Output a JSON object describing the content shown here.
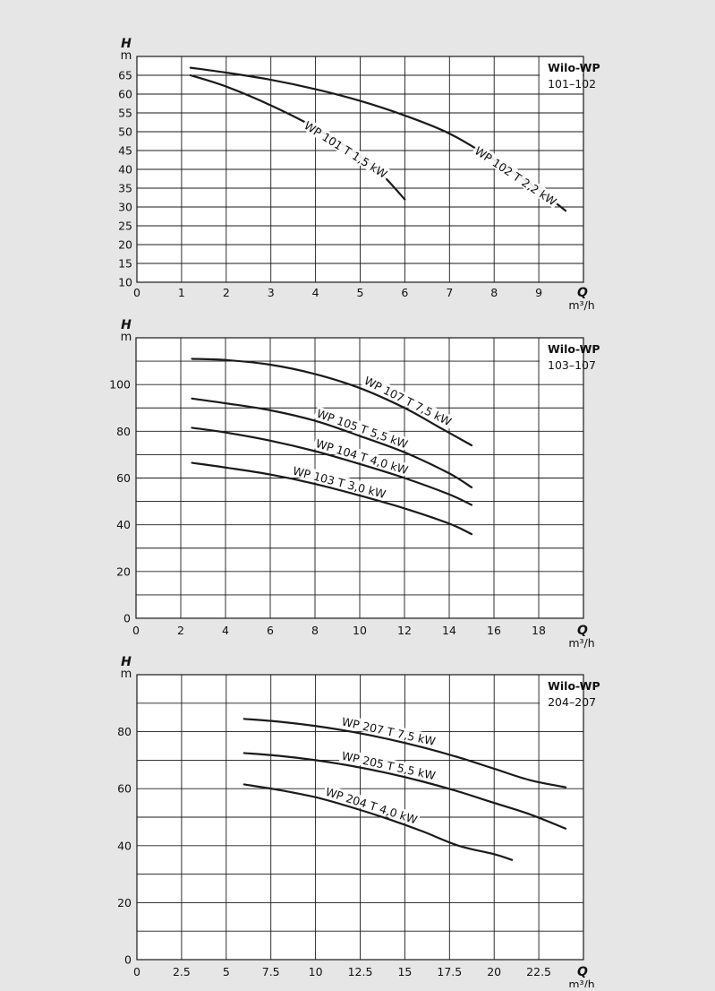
{
  "colors": {
    "background": "#e6e6e6",
    "plot_background": "#ffffff",
    "grid": "#1a1a1a",
    "curve": "#1a1a1a",
    "text": "#111111"
  },
  "chart_data": [
    {
      "type": "line",
      "brand": "Wilo-WP",
      "model_range": "101–102",
      "ylabel_symbol": "H",
      "ylabel_unit": "m",
      "xlabel_symbol": "Q",
      "xlabel_unit": "m³/h",
      "xlim": [
        0,
        10
      ],
      "ylim": [
        10,
        70
      ],
      "x_ticks": [
        0,
        1,
        2,
        3,
        4,
        5,
        6,
        7,
        8,
        9
      ],
      "x_tick_labels": [
        "0",
        "1",
        "2",
        "3",
        "4",
        "5",
        "6",
        "7",
        "8",
        "9"
      ],
      "y_ticks": [
        10,
        15,
        20,
        25,
        30,
        35,
        40,
        45,
        50,
        55,
        60,
        65
      ],
      "y_tick_labels": [
        "10",
        "15",
        "20",
        "25",
        "30",
        "35",
        "40",
        "45",
        "50",
        "55",
        "60",
        "65"
      ],
      "x_grid": [
        0,
        1,
        2,
        3,
        4,
        5,
        6,
        7,
        8,
        9,
        10
      ],
      "y_grid": [
        10,
        15,
        20,
        25,
        30,
        35,
        40,
        45,
        50,
        55,
        60,
        65,
        70
      ],
      "grid": true,
      "legend": "top-right",
      "series": [
        {
          "name": "WP 101 T 1,5 kW",
          "x": [
            1.2,
            2,
            3,
            4,
            5,
            5.5,
            6
          ],
          "y": [
            65,
            62,
            57,
            51,
            43.5,
            38.5,
            32
          ],
          "label_at_x": 4.5,
          "label_offset": [
            12,
            7
          ]
        },
        {
          "name": "WP 102 T 2,2 kW",
          "x": [
            1.2,
            2,
            3,
            4,
            5,
            6,
            7,
            8,
            9,
            9.6
          ],
          "y": [
            67,
            65.7,
            63.8,
            61.3,
            58.2,
            54.3,
            49.5,
            42.5,
            34.5,
            29
          ],
          "label_at_x": 8.3,
          "label_offset": [
            12,
            6
          ]
        }
      ]
    },
    {
      "type": "line",
      "brand": "Wilo-WP",
      "model_range": "103–107",
      "ylabel_symbol": "H",
      "ylabel_unit": "m",
      "xlabel_symbol": "Q",
      "xlabel_unit": "m³/h",
      "xlim": [
        0,
        20
      ],
      "ylim": [
        0,
        120
      ],
      "x_ticks": [
        0,
        2,
        4,
        6,
        8,
        10,
        12,
        14,
        16,
        18
      ],
      "x_tick_labels": [
        "0",
        "2",
        "4",
        "6",
        "8",
        "10",
        "12",
        "14",
        "16",
        "18"
      ],
      "y_ticks": [
        0,
        20,
        40,
        60,
        80,
        100
      ],
      "y_tick_labels": [
        "0",
        "20",
        "40",
        "60",
        "80",
        "100"
      ],
      "x_grid": [
        0,
        2,
        4,
        6,
        8,
        10,
        12,
        14,
        16,
        18,
        20
      ],
      "y_grid": [
        0,
        10,
        20,
        30,
        40,
        50,
        60,
        70,
        80,
        90,
        100,
        110,
        120
      ],
      "grid": true,
      "legend": "top-right",
      "series": [
        {
          "name": "WP 107 T 7,5 kW",
          "x": [
            2.5,
            4,
            6,
            8,
            10,
            12,
            13.5,
            15
          ],
          "y": [
            111,
            110.5,
            108.5,
            104.5,
            98.5,
            90,
            82,
            74
          ],
          "label_at_x": 12,
          "label_offset": [
            0,
            -4
          ]
        },
        {
          "name": "WP 105 T 5,5 kW",
          "x": [
            2.5,
            4,
            6,
            8,
            10,
            12,
            14,
            15
          ],
          "y": [
            94,
            92,
            89,
            84.5,
            78,
            71,
            62,
            56
          ],
          "label_at_x": 10,
          "label_offset": [
            0,
            -4
          ]
        },
        {
          "name": "WP 104 T 4,0 kW",
          "x": [
            2.5,
            4,
            6,
            8,
            10,
            12,
            14,
            15
          ],
          "y": [
            81.5,
            79.5,
            76,
            71.5,
            66,
            60,
            53,
            48.5
          ],
          "label_at_x": 10,
          "label_offset": [
            0,
            -4
          ]
        },
        {
          "name": "WP 103 T 3,0 kW",
          "x": [
            2.5,
            4,
            6,
            8,
            10,
            12,
            14,
            15
          ],
          "y": [
            66.5,
            64.5,
            61.5,
            57.5,
            52.5,
            47,
            40.5,
            36
          ],
          "label_at_x": 9,
          "label_offset": [
            0,
            -4
          ]
        }
      ]
    },
    {
      "type": "line",
      "brand": "Wilo-WP",
      "model_range": "204–207",
      "ylabel_symbol": "H",
      "ylabel_unit": "m",
      "xlabel_symbol": "Q",
      "xlabel_unit": "m³/h",
      "xlim": [
        0,
        25
      ],
      "ylim": [
        0,
        100
      ],
      "x_ticks": [
        0,
        2.5,
        5,
        7.5,
        10,
        12.5,
        15,
        17.5,
        20,
        22.5
      ],
      "x_tick_labels": [
        "0",
        "2.5",
        "5",
        "7.5",
        "10",
        "12.5",
        "15",
        "17.5",
        "20",
        "22.5"
      ],
      "y_ticks": [
        0,
        20,
        40,
        60,
        80
      ],
      "y_tick_labels": [
        "0",
        "20",
        "40",
        "60",
        "80"
      ],
      "x_grid": [
        0,
        2.5,
        5,
        7.5,
        10,
        12.5,
        15,
        17.5,
        20,
        22.5,
        25
      ],
      "y_grid": [
        0,
        10,
        20,
        30,
        40,
        50,
        60,
        70,
        80,
        90,
        100
      ],
      "grid": true,
      "legend": "top-right",
      "series": [
        {
          "name": "WP 207 T 7,5 kW",
          "x": [
            6,
            8,
            10,
            12,
            14,
            16,
            18,
            20,
            22,
            24
          ],
          "y": [
            84.5,
            83.5,
            82,
            80,
            77.5,
            74.5,
            71,
            67,
            63,
            60.5
          ],
          "label_at_x": 14,
          "label_offset": [
            0,
            -4
          ]
        },
        {
          "name": "WP 205 T 5,5 kW",
          "x": [
            6,
            8,
            10,
            12,
            14,
            16,
            18,
            20,
            22,
            24
          ],
          "y": [
            72.5,
            71.5,
            70,
            68,
            65.5,
            62.5,
            59,
            55,
            51,
            46
          ],
          "label_at_x": 14,
          "label_offset": [
            0,
            -4
          ]
        },
        {
          "name": "WP 204 T 4,0 kW",
          "x": [
            6,
            8,
            10,
            12,
            14,
            16,
            18,
            20,
            21
          ],
          "y": [
            61.5,
            59.5,
            57,
            53.5,
            49.5,
            45,
            40,
            37,
            35
          ],
          "label_at_x": 13,
          "label_offset": [
            0,
            -4
          ]
        }
      ]
    }
  ]
}
